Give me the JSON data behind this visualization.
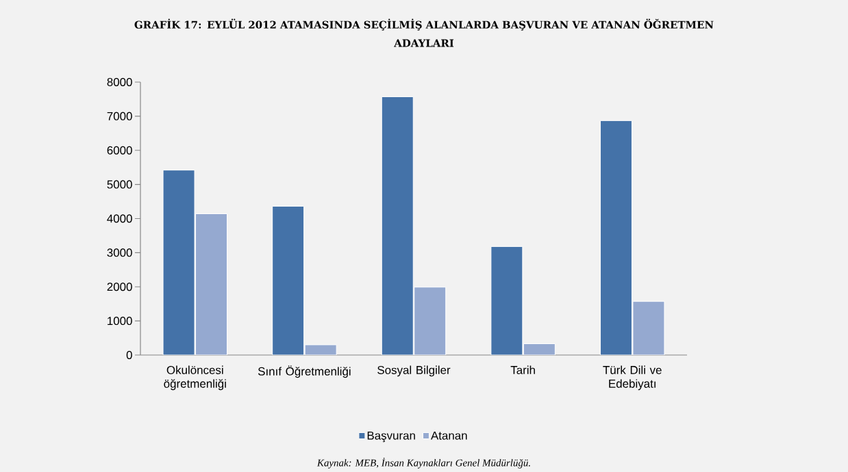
{
  "chart_data": {
    "type": "bar",
    "title": "GRAFİK 17: EYLÜL 2012 ATAMASINDA SEÇİLMİŞ ALANLARDA BAŞVURAN VE ATANAN ÖĞRETMEN ADAYLARI",
    "categories": [
      "Okulöncesi öğretmenliği",
      "Sınıf Öğretmenliği",
      "Sosyal Bilgiler",
      "Tarih",
      "Türk Dili ve Edebiyatı"
    ],
    "series": [
      {
        "name": "Başvuran",
        "color": "#4472a8",
        "values": [
          5420,
          4360,
          7570,
          3180,
          6870
        ]
      },
      {
        "name": "Atanan",
        "color": "#95a9d0",
        "values": [
          4140,
          300,
          1990,
          330,
          1570
        ]
      }
    ],
    "ylim": [
      0,
      8000
    ],
    "yticks": [
      0,
      1000,
      2000,
      3000,
      4000,
      5000,
      6000,
      7000,
      8000
    ],
    "legend": "bottom",
    "annotations": [
      "Kaynak: MEB, İnsan Kaynakları Genel Müdürlüğü."
    ]
  }
}
